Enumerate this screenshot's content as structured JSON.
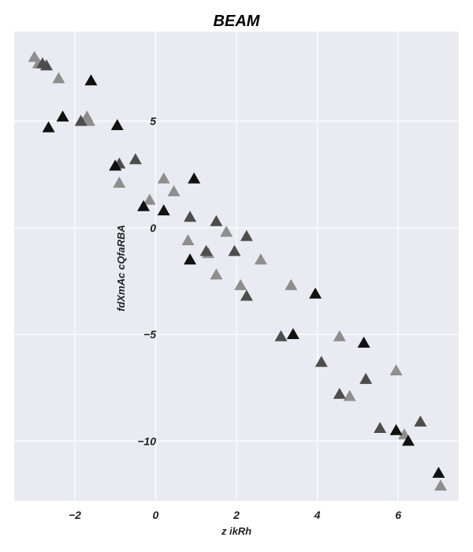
{
  "chart_data": {
    "type": "scatter",
    "title": "BEAM",
    "xlabel": "z ikRh",
    "ylabel": "fdXmAc cQfaRBA",
    "xlim": [
      -3.5,
      7.5
    ],
    "ylim": [
      -12.8,
      9.2
    ],
    "xticks": [
      -2,
      0,
      2,
      4,
      6
    ],
    "yticks": [
      5,
      0,
      -5,
      -10
    ],
    "xtick_labels": [
      "−2",
      "0",
      "2",
      "4",
      "6"
    ],
    "ytick_labels": [
      "5",
      "0",
      "−5",
      "−10"
    ],
    "grid": true,
    "legend": "none",
    "marker": "triangle",
    "colors": {
      "background": "#eaeaf2",
      "grid": "#ffffff",
      "light": "#8e8e8e",
      "dark": "#4d4d4d",
      "black": "#111111"
    },
    "series": [
      {
        "color": "#8e8e8e",
        "x": [
          -3.0,
          -2.9,
          -2.4,
          -1.7,
          -1.65,
          -0.9,
          0.2,
          0.45,
          -0.15,
          0.8,
          1.3,
          1.75,
          1.5,
          2.1,
          2.6,
          3.35,
          4.55,
          4.8,
          5.95,
          6.15,
          7.05
        ],
        "y": [
          8.0,
          7.7,
          7.0,
          5.2,
          5.0,
          2.1,
          2.3,
          1.7,
          1.3,
          -0.6,
          -1.2,
          -0.2,
          -2.2,
          -2.7,
          -1.5,
          -2.7,
          -5.1,
          -7.9,
          -6.7,
          -9.7,
          -12.1
        ]
      },
      {
        "color": "#4d4d4d",
        "x": [
          -2.8,
          -2.7,
          -1.85,
          -0.9,
          -0.5,
          0.85,
          1.5,
          1.95,
          2.25,
          1.25,
          2.25,
          3.1,
          4.1,
          4.55,
          5.2,
          5.55,
          6.55
        ],
        "y": [
          7.7,
          7.6,
          5.0,
          3.0,
          3.2,
          0.5,
          0.3,
          -1.1,
          -0.4,
          -1.1,
          -3.2,
          -5.1,
          -6.3,
          -7.8,
          -7.1,
          -9.4,
          -9.1
        ]
      },
      {
        "color": "#111111",
        "x": [
          -2.65,
          -2.3,
          -1.6,
          -0.95,
          -1.0,
          -0.3,
          0.2,
          0.85,
          0.95,
          3.4,
          3.95,
          5.15,
          5.95,
          6.25,
          7.0
        ],
        "y": [
          4.7,
          5.2,
          6.9,
          4.8,
          2.9,
          1.0,
          0.8,
          -1.5,
          2.3,
          -5.0,
          -3.1,
          -5.4,
          -9.5,
          -10.0,
          -11.5
        ]
      }
    ]
  }
}
